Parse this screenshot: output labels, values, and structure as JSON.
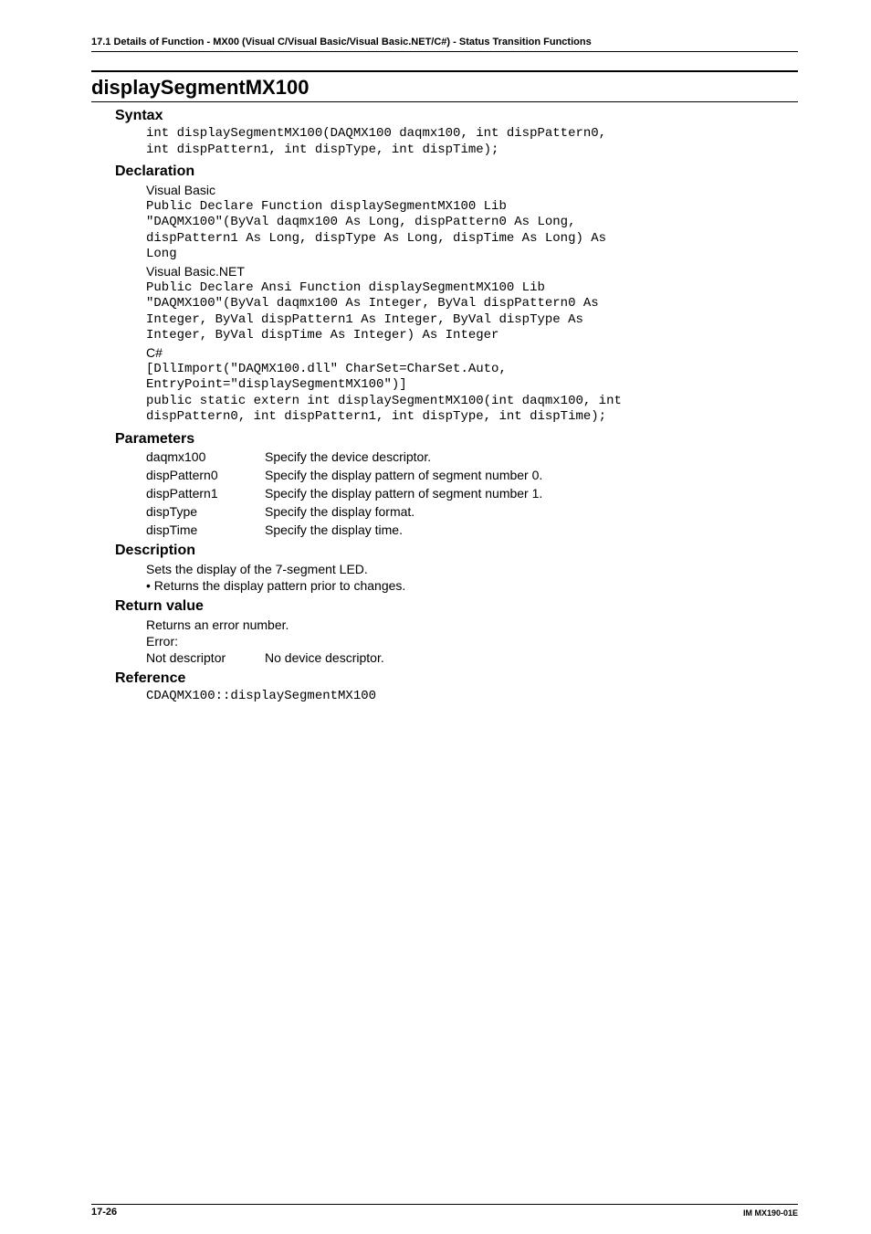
{
  "header": {
    "text": "17.1  Details of  Function - MX00 (Visual C/Visual Basic/Visual Basic.NET/C#) - Status Transition Functions"
  },
  "title": "displaySegmentMX100",
  "syntax": {
    "heading": "Syntax",
    "code": "int displaySegmentMX100(DAQMX100 daqmx100, int dispPattern0,\nint dispPattern1, int dispType, int dispTime);"
  },
  "declaration": {
    "heading": "Declaration",
    "vb_label": "Visual Basic",
    "vb_code": "Public Declare Function displaySegmentMX100 Lib\n\"DAQMX100\"(ByVal daqmx100 As Long, dispPattern0 As Long,\ndispPattern1 As Long, dispType As Long, dispTime As Long) As\nLong",
    "vbnet_label": "Visual Basic.NET",
    "vbnet_code": "Public Declare Ansi Function displaySegmentMX100 Lib\n\"DAQMX100\"(ByVal daqmx100 As Integer, ByVal dispPattern0 As\nInteger, ByVal dispPattern1 As Integer, ByVal dispType As\nInteger, ByVal dispTime As Integer) As Integer",
    "cs_label": "C#",
    "cs_code": "[DllImport(\"DAQMX100.dll\" CharSet=CharSet.Auto,\nEntryPoint=\"displaySegmentMX100\")]\npublic static extern int displaySegmentMX100(int daqmx100, int\ndispPattern0, int dispPattern1, int dispType, int dispTime);"
  },
  "parameters": {
    "heading": "Parameters",
    "rows": [
      {
        "name": "daqmx100",
        "desc": "Specify the device descriptor."
      },
      {
        "name": "dispPattern0",
        "desc": "Specify the display pattern of segment number 0."
      },
      {
        "name": "dispPattern1",
        "desc": "Specify the display pattern of segment number 1."
      },
      {
        "name": "dispType",
        "desc": "Specify the display format."
      },
      {
        "name": "dispTime",
        "desc": "Specify the display time."
      }
    ]
  },
  "description": {
    "heading": "Description",
    "line1": "Sets the display of the 7-segment LED.",
    "bullet": "•  Returns the display pattern prior to changes."
  },
  "return": {
    "heading": "Return value",
    "line1": "Returns an error number.",
    "line2": "Error:",
    "row": {
      "name": "Not descriptor",
      "desc": "No device descriptor."
    }
  },
  "reference": {
    "heading": "Reference",
    "code": "CDAQMX100::displaySegmentMX100"
  },
  "footer": {
    "left": "17-26",
    "right": "IM MX190-01E"
  }
}
